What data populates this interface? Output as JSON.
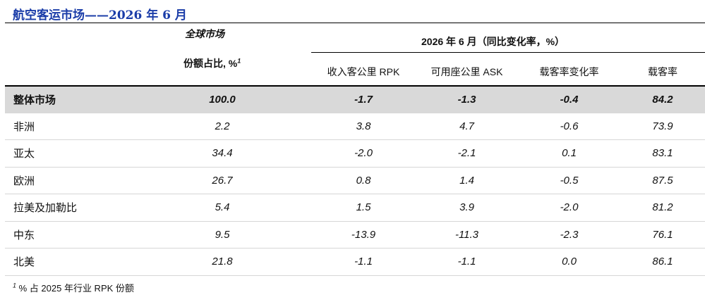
{
  "title": "航空客运市场——2026 年 6 月",
  "header": {
    "global_market": "全球市场",
    "share_label": "份额占比, %",
    "share_sup": "1",
    "period_label": "2026 年 6 月（同比变化率，%）",
    "columns": [
      "收入客公里 RPK",
      "可用座公里 ASK",
      "载客率变化率",
      "载客率"
    ]
  },
  "rows": [
    {
      "region": "整体市场",
      "share": "100.0",
      "rpk": "-1.7",
      "ask": "-1.3",
      "plf_change": "-0.4",
      "plf": "84.2"
    },
    {
      "region": "非洲",
      "share": "2.2",
      "rpk": "3.8",
      "ask": "4.7",
      "plf_change": "-0.6",
      "plf": "73.9"
    },
    {
      "region": "亚太",
      "share": "34.4",
      "rpk": "-2.0",
      "ask": "-2.1",
      "plf_change": "0.1",
      "plf": "83.1"
    },
    {
      "region": "欧洲",
      "share": "26.7",
      "rpk": "0.8",
      "ask": "1.4",
      "plf_change": "-0.5",
      "plf": "87.5"
    },
    {
      "region": "拉美及加勒比",
      "share": "5.4",
      "rpk": "1.5",
      "ask": "3.9",
      "plf_change": "-2.0",
      "plf": "81.2"
    },
    {
      "region": "中东",
      "share": "9.5",
      "rpk": "-13.9",
      "ask": "-11.3",
      "plf_change": "-2.3",
      "plf": "76.1"
    },
    {
      "region": "北美",
      "share": "21.8",
      "rpk": "-1.1",
      "ask": "-1.1",
      "plf_change": "0.0",
      "plf": "86.1"
    }
  ],
  "footnote": {
    "marker": "1",
    "text": " % 占 2025 年行业 RPK 份额"
  },
  "colors": {
    "title": "#1a3ca8",
    "total_row_bg": "#d9d9d9"
  }
}
